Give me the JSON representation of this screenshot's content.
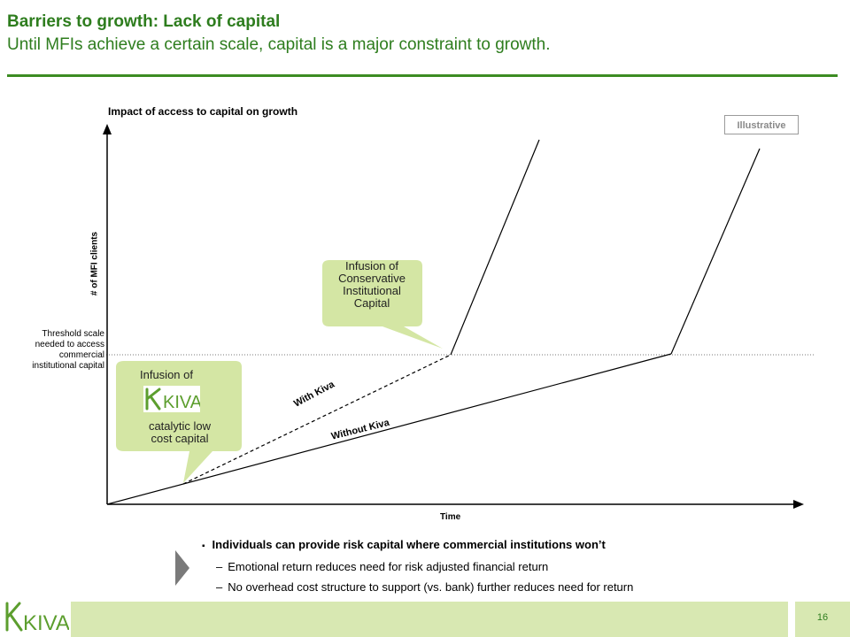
{
  "header": {
    "title": "Barriers to growth: Lack of capital",
    "subtitle": "Until MFIs achieve a certain scale, capital is a major constraint to growth."
  },
  "chart": {
    "title": "Impact of access to capital on growth",
    "badge": "Illustrative",
    "y_axis_label": "# of MFI clients",
    "x_axis_label": "Time",
    "threshold_label": "Threshold scale\nneeded to access\ncommercial\ninstitutional capital",
    "line_labels": {
      "with_kiva": "With Kiva",
      "without_kiva": "Without Kiva"
    },
    "callouts": {
      "institutional": "Infusion of\nConservative\nInstitutional\nCapital",
      "kiva_top": "Infusion of",
      "kiva_bottom": "catalytic low\ncost capital",
      "kiva_logo_text": "KIVA"
    }
  },
  "bullets": {
    "main": "Individuals can provide risk capital where commercial institutions won’t",
    "subs": [
      "Emotional return reduces need for risk adjusted financial return",
      "No overhead cost structure to support (vs. bank) further reduces need for return"
    ],
    "marker": "▪",
    "dash": "–"
  },
  "footer": {
    "logo_text": "KIVA",
    "page_number": "16"
  },
  "colors": {
    "brand_green": "#2e7d1e",
    "callout_fill": "#d4e6a4",
    "footer_band": "#d8e8b2"
  }
}
